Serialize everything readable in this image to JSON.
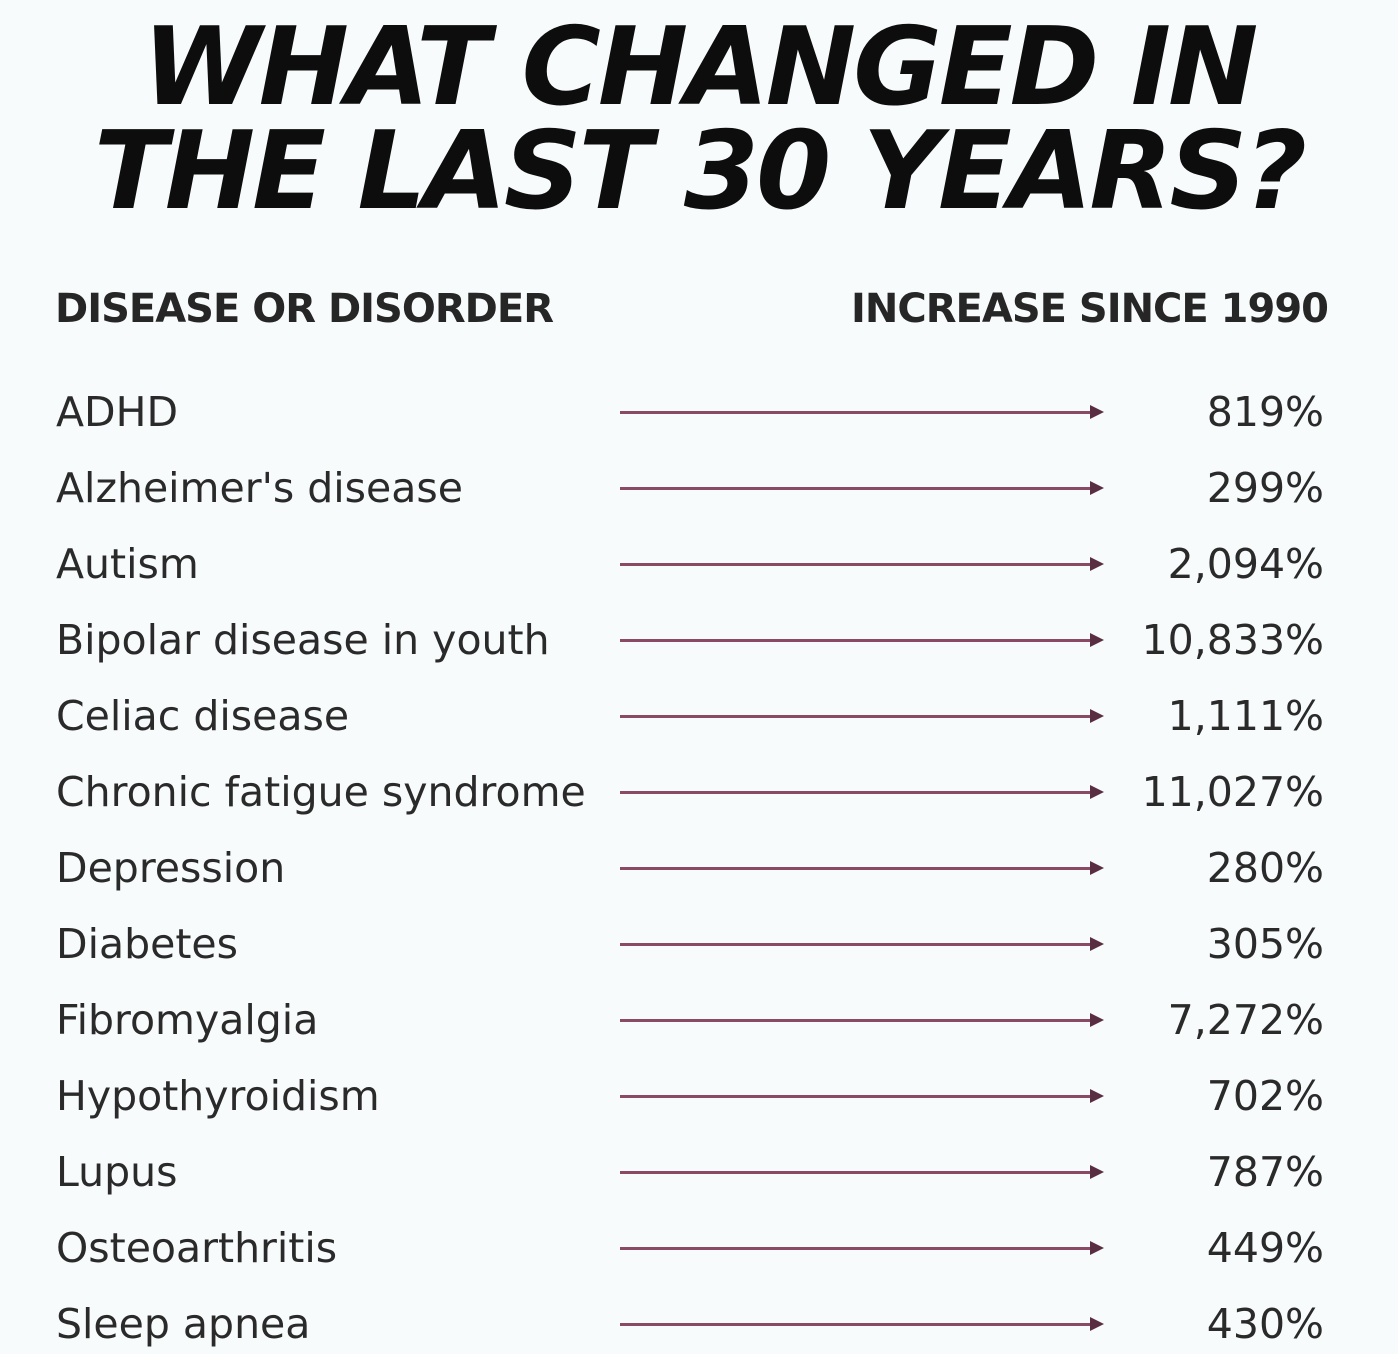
{
  "title_line1": "WHAT CHANGED IN",
  "title_line2": "THE LAST 30 YEARS?",
  "chart_data": {
    "type": "table",
    "columns": [
      "DISEASE OR DISORDER",
      "INCREASE SINCE 1990"
    ],
    "rows": [
      {
        "label": "ADHD",
        "value": 819,
        "display": "819%"
      },
      {
        "label": "Alzheimer's disease",
        "value": 299,
        "display": "299%"
      },
      {
        "label": "Autism",
        "value": 2094,
        "display": "2,094%"
      },
      {
        "label": "Bipolar disease in youth",
        "value": 10833,
        "display": "10,833%"
      },
      {
        "label": "Celiac disease",
        "value": 1111,
        "display": "1,111%"
      },
      {
        "label": "Chronic fatigue syndrome",
        "value": 11027,
        "display": "11,027%"
      },
      {
        "label": "Depression",
        "value": 280,
        "display": "280%"
      },
      {
        "label": "Diabetes",
        "value": 305,
        "display": "305%"
      },
      {
        "label": "Fibromyalgia",
        "value": 7272,
        "display": "7,272%"
      },
      {
        "label": "Hypothyroidism",
        "value": 702,
        "display": "702%"
      },
      {
        "label": "Lupus",
        "value": 787,
        "display": "787%"
      },
      {
        "label": "Osteoarthritis",
        "value": 449,
        "display": "449%"
      },
      {
        "label": "Sleep apnea",
        "value": 430,
        "display": "430%"
      }
    ]
  }
}
